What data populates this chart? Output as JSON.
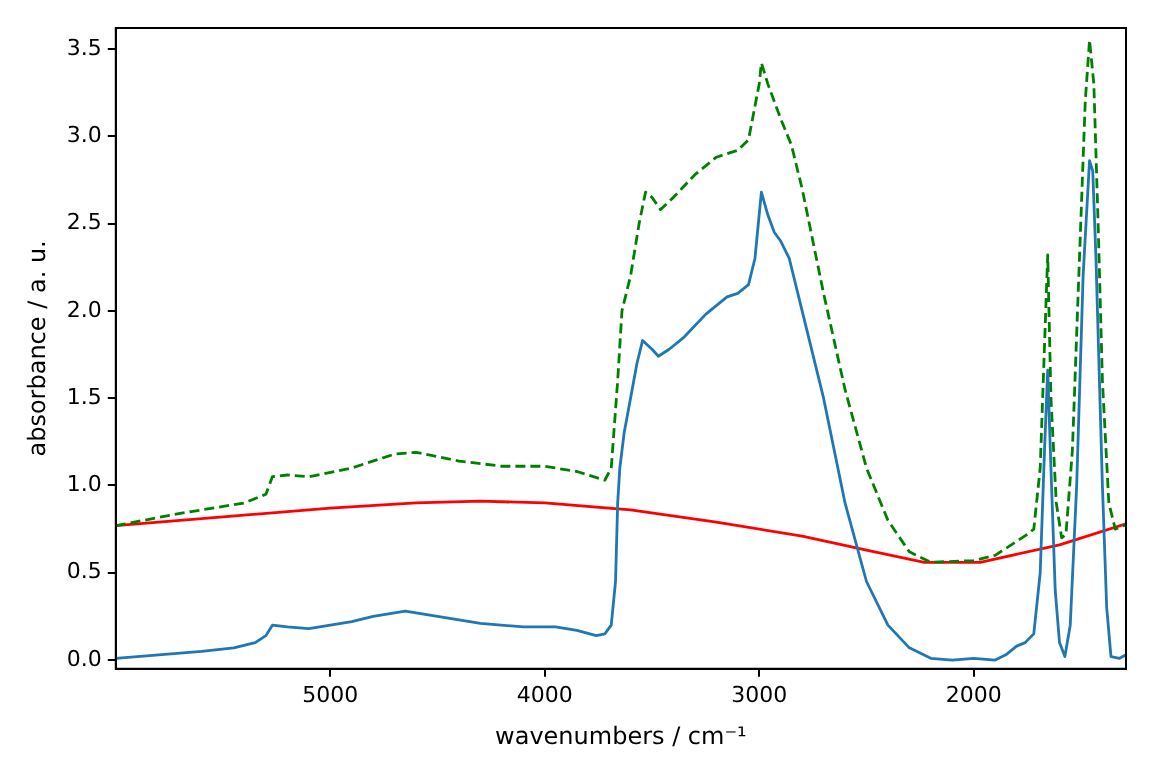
{
  "chart_data": {
    "type": "line",
    "xlabel": "wavenumbers / cm⁻¹",
    "ylabel": "absorbance / a. u.",
    "xlim": [
      6000,
      1290
    ],
    "xticks": [
      5000,
      4000,
      3000,
      2000
    ],
    "ylim": [
      -0.05,
      3.62
    ],
    "yticks": [
      {
        "value": 0,
        "label": "0.0"
      },
      0.5,
      {
        "value": 1,
        "label": "1.0"
      },
      1.5,
      {
        "value": 2,
        "label": "2.0"
      },
      2.5,
      {
        "value": 3,
        "label": "3.0"
      },
      3.5
    ],
    "grid": false,
    "legend": false,
    "marker": "none",
    "series": [
      {
        "color": "#1f77b4",
        "line_style": "solid",
        "x": [
          6000,
          5800,
          5600,
          5450,
          5350,
          5300,
          5270,
          5200,
          5100,
          5000,
          4900,
          4800,
          4650,
          4500,
          4300,
          4100,
          3950,
          3850,
          3760,
          3720,
          3690,
          3670,
          3660,
          3650,
          3630,
          3600,
          3570,
          3544,
          3500,
          3470,
          3420,
          3350,
          3250,
          3150,
          3100,
          3050,
          3020,
          2990,
          2960,
          2930,
          2900,
          2860,
          2800,
          2700,
          2600,
          2500,
          2400,
          2300,
          2200,
          2100,
          2000,
          1900,
          1850,
          1800,
          1760,
          1720,
          1690,
          1670,
          1655,
          1640,
          1620,
          1600,
          1575,
          1550,
          1520,
          1490,
          1460,
          1445,
          1430,
          1400,
          1380,
          1360,
          1320,
          1290
        ],
        "values": [
          0.01,
          0.03,
          0.05,
          0.07,
          0.1,
          0.14,
          0.2,
          0.19,
          0.18,
          0.2,
          0.22,
          0.25,
          0.28,
          0.25,
          0.21,
          0.19,
          0.19,
          0.17,
          0.14,
          0.15,
          0.2,
          0.45,
          0.9,
          1.1,
          1.3,
          1.5,
          1.7,
          1.83,
          1.78,
          1.74,
          1.78,
          1.85,
          1.98,
          2.08,
          2.1,
          2.15,
          2.3,
          2.68,
          2.55,
          2.45,
          2.4,
          2.3,
          2.0,
          1.5,
          0.9,
          0.45,
          0.2,
          0.07,
          0.01,
          0.0,
          0.01,
          0.0,
          0.03,
          0.08,
          0.1,
          0.15,
          0.5,
          1.2,
          1.66,
          1.1,
          0.4,
          0.1,
          0.02,
          0.2,
          1.0,
          2.2,
          2.86,
          2.8,
          2.3,
          1.0,
          0.3,
          0.02,
          0.01,
          0.03
        ]
      },
      {
        "color": "#008000",
        "line_style": "dashed",
        "x": [
          6000,
          5700,
          5400,
          5300,
          5270,
          5200,
          5100,
          4900,
          4700,
          4600,
          4400,
          4200,
          4000,
          3850,
          3720,
          3690,
          3660,
          3640,
          3600,
          3560,
          3530,
          3500,
          3460,
          3400,
          3300,
          3200,
          3100,
          3050,
          3000,
          2990,
          2960,
          2900,
          2850,
          2800,
          2700,
          2600,
          2500,
          2400,
          2300,
          2200,
          2000,
          1900,
          1800,
          1750,
          1720,
          1690,
          1670,
          1655,
          1640,
          1615,
          1590,
          1570,
          1540,
          1510,
          1480,
          1460,
          1440,
          1420,
          1400,
          1370,
          1340,
          1300,
          1290
        ],
        "values": [
          0.77,
          0.84,
          0.9,
          0.95,
          1.05,
          1.06,
          1.05,
          1.1,
          1.18,
          1.19,
          1.14,
          1.11,
          1.11,
          1.08,
          1.03,
          1.1,
          1.6,
          2.0,
          2.2,
          2.5,
          2.68,
          2.65,
          2.58,
          2.65,
          2.78,
          2.88,
          2.92,
          2.98,
          3.3,
          3.42,
          3.3,
          3.1,
          2.95,
          2.7,
          2.1,
          1.55,
          1.1,
          0.8,
          0.62,
          0.56,
          0.57,
          0.6,
          0.68,
          0.72,
          0.75,
          1.1,
          1.8,
          2.32,
          1.5,
          0.9,
          0.7,
          0.72,
          1.2,
          2.2,
          3.2,
          3.55,
          3.3,
          2.5,
          1.6,
          0.9,
          0.75,
          0.77,
          0.78
        ]
      },
      {
        "color": "#ff0000",
        "line_style": "solid",
        "x": [
          6000,
          5500,
          5000,
          4600,
          4300,
          4000,
          3600,
          3200,
          2800,
          2500,
          2230,
          1970,
          1600,
          1290
        ],
        "values": [
          0.77,
          0.82,
          0.87,
          0.9,
          0.91,
          0.9,
          0.86,
          0.79,
          0.71,
          0.63,
          0.56,
          0.56,
          0.66,
          0.78
        ]
      }
    ]
  }
}
